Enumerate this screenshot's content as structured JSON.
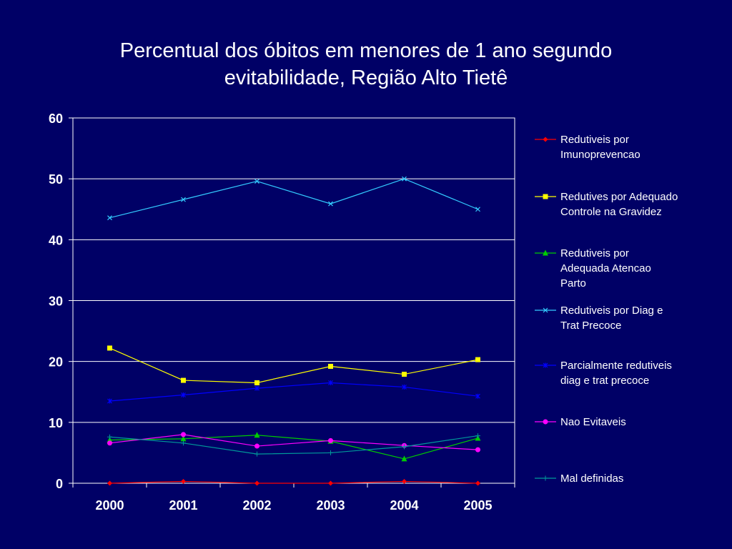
{
  "slide": {
    "title_line1": "Percentual dos óbitos em menores de 1 ano segundo",
    "title_line2": "evitabilidade, Região Alto Tietê",
    "background": "#000066"
  },
  "chart_data": {
    "type": "line",
    "title": "Percentual dos óbitos em menores de 1 ano segundo evitabilidade, Região Alto Tietê",
    "xlabel": "",
    "ylabel": "",
    "categories": [
      "2000",
      "2001",
      "2002",
      "2003",
      "2004",
      "2005"
    ],
    "ylim": [
      0,
      60
    ],
    "yticks": [
      0,
      10,
      20,
      30,
      40,
      50,
      60
    ],
    "grid": "horizontal",
    "legend_position": "right",
    "series": [
      {
        "name_lines": [
          "Redutiveis por",
          "Imunoprevencao"
        ],
        "color": "#ff0000",
        "marker": "diamond",
        "values": [
          0,
          0.3,
          0,
          0,
          0.3,
          0
        ]
      },
      {
        "name_lines": [
          "Redutives por Adequado",
          "Controle na Gravidez"
        ],
        "color": "#ffff00",
        "marker": "square",
        "values": [
          22.2,
          16.9,
          16.5,
          19.2,
          17.9,
          20.3
        ]
      },
      {
        "name_lines": [
          "Redutiveis por",
          "Adequada Atencao",
          "Parto"
        ],
        "color": "#00cc00",
        "marker": "triangle",
        "values": [
          7.1,
          7.3,
          7.9,
          6.9,
          4.0,
          7.4
        ]
      },
      {
        "name_lines": [
          "Redutiveis por Diag e",
          "Trat Precoce"
        ],
        "color": "#33ccff",
        "marker": "x",
        "values": [
          43.6,
          46.6,
          49.6,
          45.9,
          50.0,
          45.0
        ]
      },
      {
        "name_lines": [
          "Parcialmente redutiveis",
          "diag e trat precoce"
        ],
        "color": "#0000ff",
        "marker": "star",
        "values": [
          13.5,
          14.5,
          15.6,
          16.5,
          15.8,
          14.3
        ]
      },
      {
        "name_lines": [
          "Nao Evitaveis"
        ],
        "color": "#ff00ff",
        "marker": "circle",
        "values": [
          6.6,
          8.0,
          6.1,
          7.0,
          6.2,
          5.5
        ]
      },
      {
        "name_lines": [
          "Mal definidas"
        ],
        "color": "#009999",
        "marker": "plus",
        "values": [
          7.6,
          6.6,
          4.8,
          5.0,
          6.0,
          7.8
        ]
      }
    ]
  }
}
